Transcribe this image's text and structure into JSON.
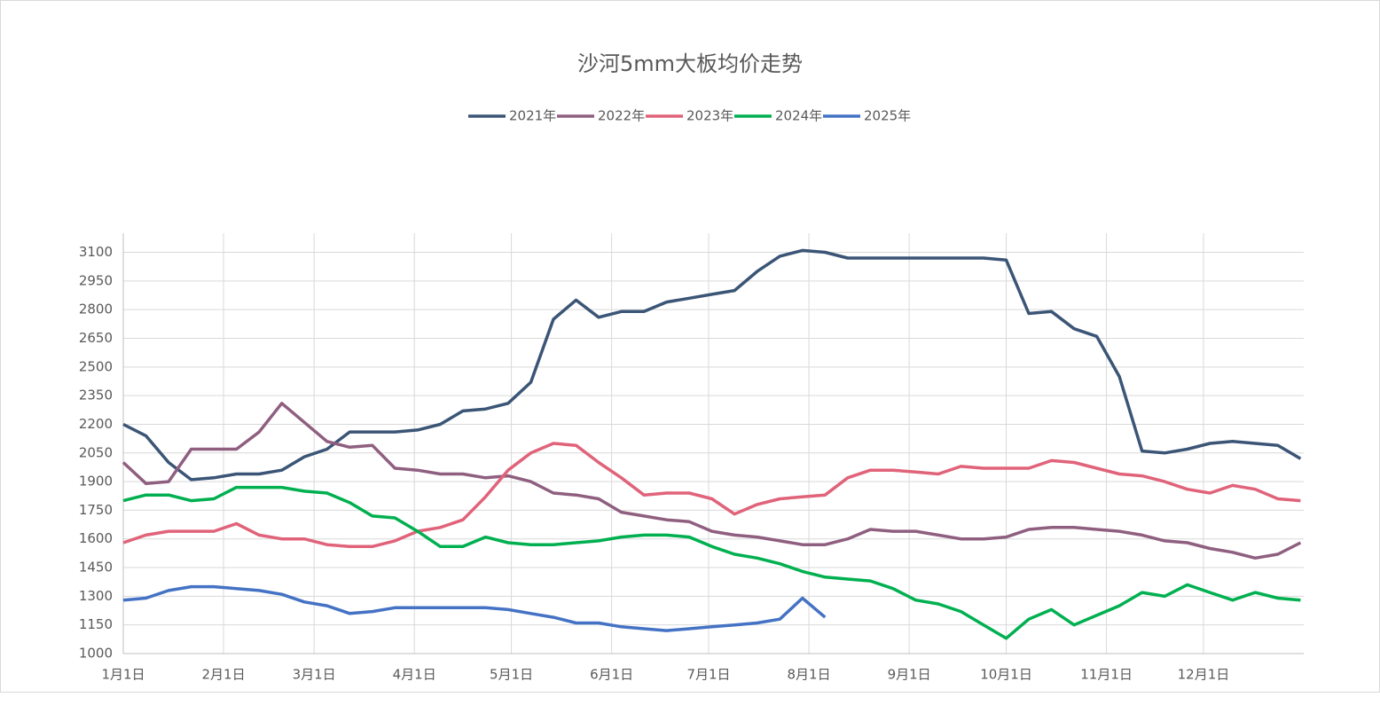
{
  "chart_data": {
    "type": "line",
    "title": "沙河5mm大板均价走势",
    "x": [
      0,
      7,
      14,
      21,
      28,
      35,
      42,
      49,
      56,
      63,
      70,
      77,
      84,
      91,
      98,
      105,
      112,
      119,
      126,
      133,
      140,
      147,
      154,
      161,
      168,
      175,
      182,
      189,
      196,
      203,
      210,
      217,
      224,
      231,
      238,
      245,
      252,
      259,
      266,
      273,
      280,
      287,
      294,
      301,
      308,
      315,
      322,
      329,
      336,
      343,
      350,
      357,
      364
    ],
    "xlim": [
      0,
      365
    ],
    "xticks": [
      {
        "value": 0,
        "label": "1月1日"
      },
      {
        "value": 31,
        "label": "2月1日"
      },
      {
        "value": 59,
        "label": "3月1日"
      },
      {
        "value": 90,
        "label": "4月1日"
      },
      {
        "value": 120,
        "label": "5月1日"
      },
      {
        "value": 151,
        "label": "6月1日"
      },
      {
        "value": 181,
        "label": "7月1日"
      },
      {
        "value": 212,
        "label": "8月1日"
      },
      {
        "value": 243,
        "label": "9月1日"
      },
      {
        "value": 273,
        "label": "10月1日"
      },
      {
        "value": 304,
        "label": "11月1日"
      },
      {
        "value": 334,
        "label": "12月1日"
      }
    ],
    "ylim": [
      1000,
      3200
    ],
    "yticks": [
      1000,
      1150,
      1300,
      1450,
      1600,
      1750,
      1900,
      2050,
      2200,
      2350,
      2500,
      2650,
      2800,
      2950,
      3100
    ],
    "grid": true,
    "series": [
      {
        "name": "2021年",
        "color": "#3b5576",
        "values": [
          2200,
          2140,
          2000,
          1910,
          1920,
          1940,
          1940,
          1960,
          2030,
          2070,
          2160,
          2160,
          2160,
          2170,
          2200,
          2270,
          2280,
          2310,
          2420,
          2750,
          2850,
          2760,
          2790,
          2790,
          2840,
          2860,
          2880,
          2900,
          3000,
          3080,
          3110,
          3100,
          3070,
          3070,
          3070,
          3070,
          3070,
          3070,
          3070,
          3060,
          2780,
          2790,
          2700,
          2660,
          2450,
          2060,
          2050,
          2070,
          2100,
          2110,
          2100,
          2090,
          2020
        ]
      },
      {
        "name": "2022年",
        "color": "#8f5f80",
        "values": [
          2000,
          1890,
          1900,
          2070,
          2070,
          2070,
          2160,
          2310,
          2210,
          2110,
          2080,
          2090,
          1970,
          1960,
          1940,
          1940,
          1920,
          1930,
          1900,
          1840,
          1830,
          1810,
          1740,
          1720,
          1700,
          1690,
          1640,
          1620,
          1610,
          1590,
          1570,
          1570,
          1600,
          1650,
          1640,
          1640,
          1620,
          1600,
          1600,
          1610,
          1650,
          1660,
          1660,
          1650,
          1640,
          1620,
          1590,
          1580,
          1550,
          1530,
          1500,
          1520,
          1580
        ]
      },
      {
        "name": "2023年",
        "color": "#e0637a",
        "values": [
          1580,
          1620,
          1640,
          1640,
          1640,
          1680,
          1620,
          1600,
          1600,
          1570,
          1560,
          1560,
          1590,
          1640,
          1660,
          1700,
          1820,
          1960,
          2050,
          2100,
          2090,
          2000,
          1920,
          1830,
          1840,
          1840,
          1810,
          1730,
          1780,
          1810,
          1820,
          1830,
          1920,
          1960,
          1960,
          1950,
          1940,
          1980,
          1970,
          1970,
          1970,
          2010,
          2000,
          1970,
          1940,
          1930,
          1900,
          1860,
          1840,
          1880,
          1860,
          1810,
          1800
        ]
      },
      {
        "name": "2024年",
        "color": "#00b050",
        "values": [
          1800,
          1830,
          1830,
          1800,
          1810,
          1870,
          1870,
          1870,
          1850,
          1840,
          1790,
          1720,
          1710,
          1640,
          1560,
          1560,
          1610,
          1580,
          1570,
          1570,
          1580,
          1590,
          1610,
          1620,
          1620,
          1610,
          1560,
          1520,
          1500,
          1470,
          1430,
          1400,
          1390,
          1380,
          1340,
          1280,
          1260,
          1220,
          1150,
          1080,
          1180,
          1230,
          1150,
          1200,
          1250,
          1320,
          1300,
          1360,
          1320,
          1280,
          1320,
          1290,
          1280
        ]
      },
      {
        "name": "2025年",
        "color": "#4472c4",
        "values": [
          1280,
          1290,
          1330,
          1350,
          1350,
          1340,
          1330,
          1310,
          1270,
          1250,
          1210,
          1220,
          1240,
          1240,
          1240,
          1240,
          1240,
          1230,
          1210,
          1190,
          1160,
          1160,
          1140,
          1130,
          1120,
          1130,
          1140,
          1150,
          1160,
          1180,
          1290,
          1190,
          null,
          null,
          null,
          null,
          null,
          null,
          null,
          null,
          null,
          null,
          null,
          null,
          null,
          null,
          null,
          null,
          null,
          null,
          null,
          null,
          null
        ]
      }
    ]
  }
}
